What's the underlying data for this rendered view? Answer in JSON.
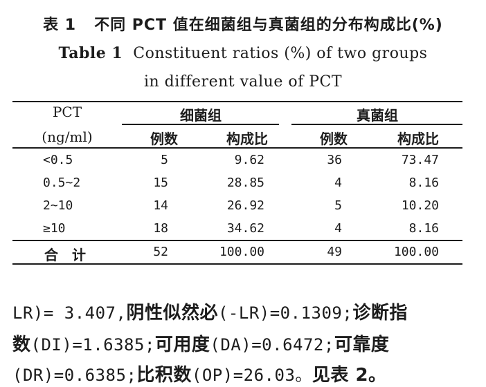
{
  "caption": {
    "cn_label": "表 1",
    "cn_title": "不同 PCT 值在细菌组与真菌组的分布构成比(%)",
    "en_label": "Table 1",
    "en_title_line1": "Constituent ratios (%) of two groups",
    "en_title_line2": "in different value of PCT"
  },
  "table": {
    "row_header_1": "PCT",
    "row_header_2": "(ng/ml)",
    "group_bacteria": "细菌组",
    "group_fungi": "真菌组",
    "col_cases": "例数",
    "col_ratio": "构成比",
    "rows": [
      {
        "label": "<0.5",
        "b_cases": "5",
        "b_ratio": "9.62",
        "f_cases": "36",
        "f_ratio": "73.47"
      },
      {
        "label": "0.5~2",
        "b_cases": "15",
        "b_ratio": "28.85",
        "f_cases": "4",
        "f_ratio": "8.16"
      },
      {
        "label": "2~10",
        "b_cases": "14",
        "b_ratio": "26.92",
        "f_cases": "5",
        "f_ratio": "10.20"
      },
      {
        "label": "≥10",
        "b_cases": "18",
        "b_ratio": "34.62",
        "f_cases": "4",
        "f_ratio": "8.16"
      }
    ],
    "total": {
      "label": "合　计",
      "b_cases": "52",
      "b_ratio": "100.00",
      "f_cases": "49",
      "f_ratio": "100.00"
    }
  },
  "body": {
    "line1_a": "LR)= 3.407,",
    "line1_b": "阴性似然必",
    "line1_c": "(-LR)=0.1309;",
    "line1_d": "诊断指",
    "line2_a": "数",
    "line2_b": "(DI)=1.6385;",
    "line2_c": "可用度",
    "line2_d": "(DA)=0.6472;",
    "line2_e": "可靠度",
    "line3_a": "(DR)=0.6385;",
    "line3_b": "比积数",
    "line3_c": "(OP)=26.03。",
    "line3_d": "见表 2。"
  }
}
